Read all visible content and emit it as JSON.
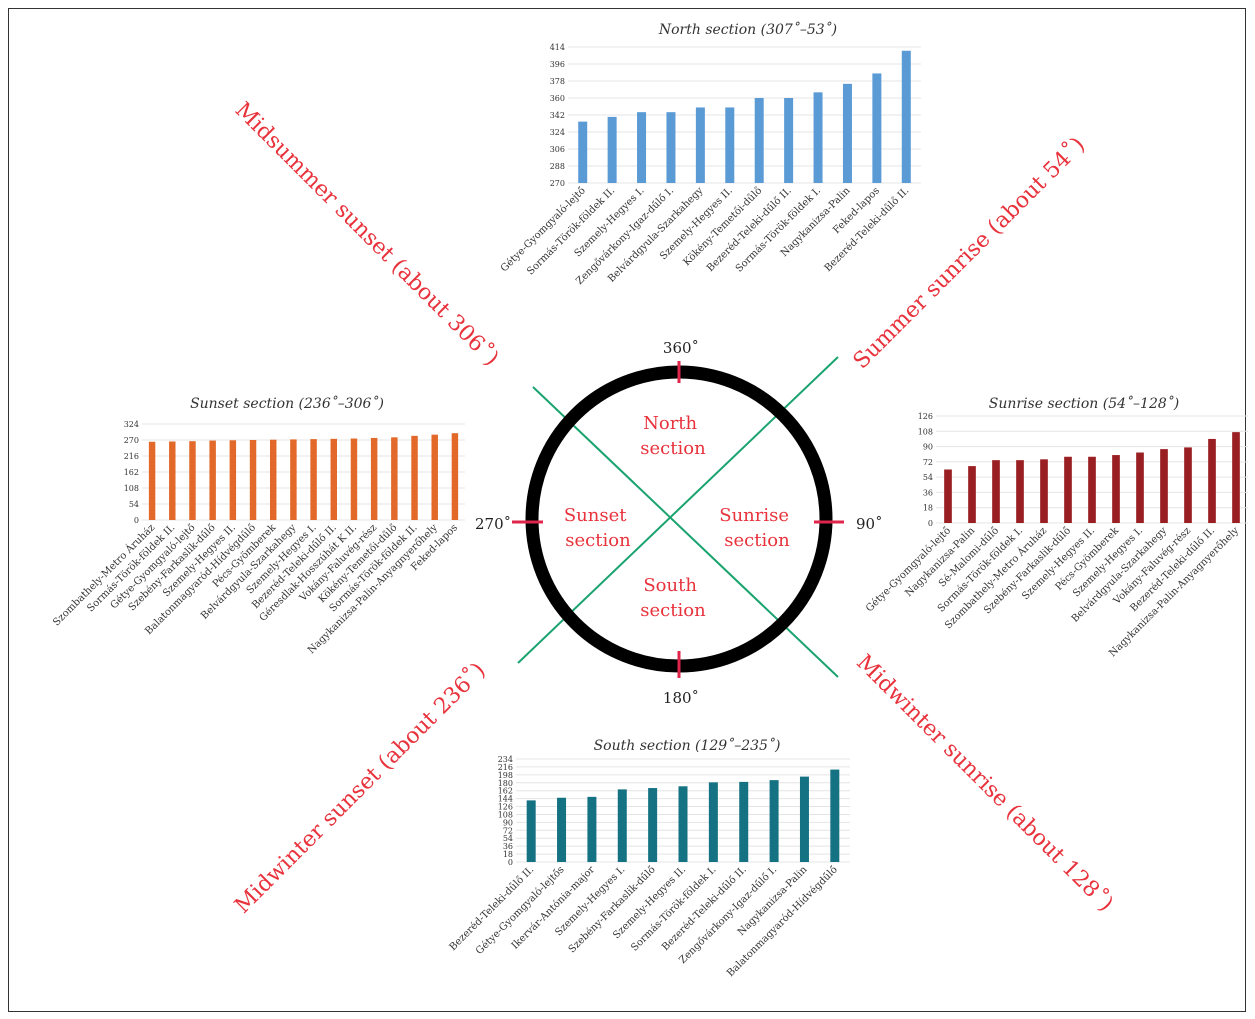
{
  "compass": {
    "degrees": {
      "top": "360˚",
      "right": "90˚",
      "bottom": "180˚",
      "left": "270˚"
    },
    "sections": {
      "north": [
        "North",
        "section"
      ],
      "south": [
        "South",
        "section"
      ],
      "sunrise": [
        "Sunrise",
        "section"
      ],
      "sunset": [
        "Sunset",
        "section"
      ]
    },
    "directions": {
      "summer_sunrise": "Summer sunrise (about 54˚)",
      "midsummer_sunset": "Midsummer sunset (about 306˚)",
      "midwinter_sunset": "Midwinter sunset (about 236˚)",
      "midwinter_sunrise": "Midwinter sunrise (about 128˚)"
    },
    "colors": {
      "circle": "#000000",
      "cross": "#1aa36f",
      "ticks": "#e0254a",
      "labels": "#e8323c"
    }
  },
  "chart_data": [
    {
      "id": "north",
      "type": "bar",
      "title": "North section (307˚–53˚)",
      "color": "#5b9bd5",
      "ylim": [
        270,
        414
      ],
      "yticks": [
        270,
        288,
        306,
        324,
        342,
        360,
        378,
        396,
        414
      ],
      "categories": [
        "Gétye-Gyomgyaló-lejtő",
        "Sormás-Török-földek II.",
        "Szemely-Hegyes I.",
        "Zengővárkony-Igaz-dűlő I.",
        "Belvárdgyula-Szarkahegy",
        "Szemely-Hegyes II.",
        "Kökény-Temetői-dűlő",
        "Bezeréd-Teleki-dűlő II.",
        "Sormás-Török-földek I.",
        "Nagykanizsa-Palin",
        "Feked-lapos",
        "Bezeréd-Teleki-dűlő II."
      ],
      "values": [
        335,
        340,
        345,
        345,
        350,
        350,
        360,
        360,
        366,
        375,
        386,
        410
      ]
    },
    {
      "id": "sunrise",
      "type": "bar",
      "title": "Sunrise section (54˚–128˚)",
      "color": "#9a1f23",
      "ylim": [
        0,
        126
      ],
      "yticks": [
        0,
        18,
        36,
        54,
        72,
        90,
        108,
        126
      ],
      "categories": [
        "Gétye-Gyomgyaló-lejtő",
        "Nagykanizsa-Palin",
        "Sé-Malomi-dűlő",
        "Sormás-Török-földek I.",
        "Szombathely-Metro Áruház",
        "Szebény-Farkaslik-dűlő",
        "Szemely-Hegyes II.",
        "Pécs-Gyömberek",
        "Szemely-Hegyes I.",
        "Belvárdgyula-Szarkahegy",
        "Vokány-Faluvég-rész",
        "Bezeréd-Teleki-dűlő II.",
        "Nagykanizsa-Palin-Anyagnyerőhely"
      ],
      "values": [
        63,
        67,
        74,
        74,
        75,
        78,
        78,
        80,
        83,
        87,
        89,
        99,
        107
      ]
    },
    {
      "id": "sunset",
      "type": "bar",
      "title": "Sunset section (236˚–306˚)",
      "color": "#e2692a",
      "ylim": [
        0,
        324
      ],
      "yticks": [
        0,
        54,
        108,
        162,
        216,
        270,
        324
      ],
      "categories": [
        "Szombathely-Metro Áruház",
        "Sormás-Török-földek II.",
        "Gétye-Gyomgyaló-lejtő",
        "Szebény-Farkaslik-dűlő",
        "Szemely-Hegyes II.",
        "Balatonmagyaród-Hídvégdűlő",
        "Pécs-Gyömberek",
        "Belvárdgyula-Szarkahegy",
        "Szemely-Hegyes I.",
        "Bezeréd-Teleki-dűlő II.",
        "Géresdlak-Hosszúhát K II.",
        "Vokány-Faluvég-rész",
        "Kökény-Temetői-dűlő",
        "Sormás-Török-földek II.",
        "Nagykanizsa-Palin-Anyagnyerőhely",
        "Feked-lapos"
      ],
      "values": [
        264,
        265,
        266,
        268,
        269,
        270,
        271,
        272,
        273,
        274,
        275,
        277,
        279,
        284,
        288,
        293
      ]
    },
    {
      "id": "south",
      "type": "bar",
      "title": "South section (129˚–235˚)",
      "color": "#157282",
      "ylim": [
        0,
        234
      ],
      "yticks": [
        0,
        18,
        36,
        54,
        72,
        90,
        108,
        126,
        144,
        162,
        180,
        198,
        216,
        234
      ],
      "categories": [
        "Bezeréd-Teleki-dűlő II.",
        "Gétye-Gyomgyaló-lejtős",
        "Ikervár-Antónia-major",
        "Szemely-Hegyes I.",
        "Szebény-Farkaslik-dűlő",
        "Szemely-Hegyes II.",
        "Sormás-Török-földek I.",
        "Bezeréd-Teleki-dűlő II.",
        "Zengővárkony-Igaz-dűlő I.",
        "Nagykanizsa-Palin",
        "Balatonmagyaród-Hídvégdűlő"
      ],
      "values": [
        140,
        146,
        148,
        165,
        168,
        172,
        181,
        182,
        186,
        194,
        210
      ]
    }
  ]
}
